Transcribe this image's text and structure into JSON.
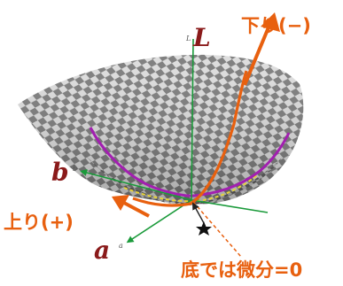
{
  "labels": {
    "down": "下り(−)",
    "up": "上り(+)",
    "bottom": "底では微分=0",
    "axis_L": "L",
    "axis_L_small": "L",
    "axis_a": "a",
    "axis_a_small": "a",
    "axis_b": "b",
    "axis_b_small": "b"
  },
  "colors": {
    "orange": "#e8600f",
    "purple": "#a21fb0",
    "green": "#1a9a3a",
    "axis_label": "#8a1a1a",
    "yellow_dash": "#e6d23a",
    "surface_light": "#d9d9d9",
    "surface_dark": "#6a6a6a"
  },
  "icons": {
    "minimum_marker": "star-icon"
  }
}
